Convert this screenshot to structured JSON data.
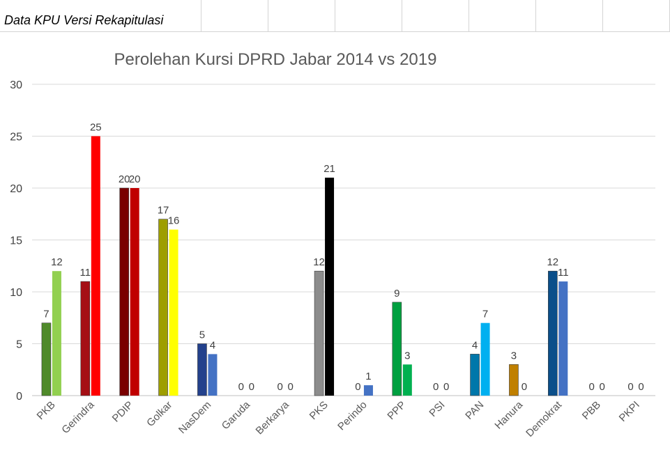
{
  "sheet": {
    "title": "Data KPU Versi Rekapitulasi"
  },
  "chart_data": {
    "type": "bar",
    "title": "Perolehan Kursi DPRD Jabar 2014 vs 2019",
    "xlabel": "",
    "ylabel": "",
    "ylim": [
      0,
      30
    ],
    "yticks": [
      0,
      5,
      10,
      15,
      20,
      25,
      30
    ],
    "grid": true,
    "categories": [
      "PKB",
      "Gerindra",
      "PDIP",
      "Golkar",
      "NasDem",
      "Garuda",
      "Berkarya",
      "PKS",
      "Perindo",
      "PPP",
      "PSI",
      "PAN",
      "Hanura",
      "Demokrat",
      "PBB",
      "PKPI"
    ],
    "series": [
      {
        "name": "2014",
        "values": [
          7,
          11,
          20,
          17,
          5,
          0,
          0,
          12,
          0,
          9,
          0,
          4,
          3,
          12,
          0,
          0
        ],
        "colors": [
          "#4f8a2a",
          "#a50f15",
          "#7a0000",
          "#9e9e00",
          "#23418c",
          "#4472c4",
          "#4472c4",
          "#8c8c8c",
          "#4472c4",
          "#00a040",
          "#4472c4",
          "#0077aa",
          "#c08000",
          "#0b4f8a",
          "#4472c4",
          "#4472c4"
        ]
      },
      {
        "name": "2019",
        "values": [
          12,
          25,
          20,
          16,
          4,
          0,
          0,
          21,
          1,
          3,
          0,
          7,
          0,
          11,
          0,
          0
        ],
        "colors": [
          "#92d050",
          "#ff0000",
          "#c00000",
          "#ffff00",
          "#4472c4",
          "#4472c4",
          "#4472c4",
          "#000000",
          "#4472c4",
          "#00b050",
          "#4472c4",
          "#00b0f0",
          "#ffc000",
          "#4472c4",
          "#4472c4",
          "#4472c4"
        ]
      }
    ]
  }
}
